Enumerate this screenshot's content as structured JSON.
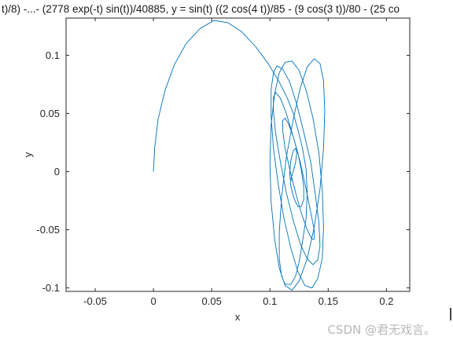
{
  "chart_data": {
    "type": "line",
    "title": "t)/8) -...- (2778 exp(-t) sin(t))/40885, y = sin(t) ((2 cos(4 t))/85 - (9 cos(3 t))/80 - (25 co",
    "xlabel": "x",
    "ylabel": "y",
    "xlim": [
      -0.075,
      0.22
    ],
    "ylim": [
      -0.103,
      0.132
    ],
    "xticks": [
      -0.05,
      0,
      0.05,
      0.1,
      0.15,
      0.2
    ],
    "xtick_labels": [
      "-0.05",
      "0",
      "0.05",
      "0.1",
      "0.15",
      "0.2"
    ],
    "yticks": [
      -0.1,
      -0.05,
      0,
      0.05,
      0.1
    ],
    "ytick_labels": [
      "-0.1",
      "-0.05",
      "0",
      "0.05",
      "0.1"
    ],
    "grid": false,
    "series": [
      {
        "color": "#0072bd",
        "x": [
          0.0,
          0.001,
          0.004,
          0.01,
          0.018,
          0.028,
          0.04,
          0.052,
          0.064,
          0.076,
          0.088,
          0.099,
          0.108,
          0.115,
          0.12,
          0.124,
          0.128,
          0.131,
          0.132,
          0.131,
          0.128,
          0.125,
          0.122,
          0.118,
          0.113,
          0.11,
          0.108,
          0.108,
          0.11,
          0.114,
          0.12,
          0.126,
          0.132,
          0.138,
          0.143,
          0.146,
          0.147,
          0.146,
          0.143,
          0.138,
          0.132,
          0.125,
          0.119,
          0.113,
          0.108,
          0.104,
          0.101,
          0.1,
          0.101,
          0.104,
          0.108,
          0.113,
          0.119,
          0.125,
          0.131,
          0.137,
          0.142,
          0.145,
          0.146,
          0.145,
          0.141,
          0.136,
          0.13,
          0.124,
          0.118,
          0.112,
          0.107,
          0.103,
          0.101,
          0.101,
          0.103,
          0.106,
          0.111,
          0.117,
          0.123,
          0.129,
          0.135,
          0.139,
          0.142,
          0.143,
          0.141,
          0.137,
          0.132,
          0.126,
          0.12,
          0.114,
          0.109,
          0.105,
          0.103,
          0.103,
          0.105,
          0.109,
          0.114,
          0.12,
          0.126,
          0.131,
          0.135,
          0.138,
          0.138,
          0.136,
          0.132,
          0.127,
          0.122,
          0.117,
          0.113,
          0.111,
          0.111,
          0.113,
          0.116,
          0.12,
          0.124,
          0.127,
          0.129,
          0.129,
          0.127,
          0.124,
          0.121,
          0.118,
          0.117,
          0.118,
          0.12,
          0.122,
          0.123,
          0.122,
          0.12,
          0.118,
          0.119
        ],
        "y": [
          0.0,
          0.02,
          0.045,
          0.07,
          0.092,
          0.11,
          0.123,
          0.13,
          0.128,
          0.12,
          0.107,
          0.092,
          0.077,
          0.063,
          0.05,
          0.036,
          0.02,
          0.002,
          -0.018,
          -0.04,
          -0.06,
          -0.078,
          -0.09,
          -0.097,
          -0.097,
          -0.09,
          -0.075,
          -0.052,
          -0.022,
          0.012,
          0.045,
          0.072,
          0.09,
          0.097,
          0.093,
          0.078,
          0.052,
          0.02,
          -0.015,
          -0.048,
          -0.075,
          -0.094,
          -0.102,
          -0.098,
          -0.083,
          -0.058,
          -0.026,
          0.008,
          0.04,
          0.067,
          0.085,
          0.094,
          0.095,
          0.087,
          0.07,
          0.046,
          0.016,
          -0.017,
          -0.048,
          -0.074,
          -0.092,
          -0.1,
          -0.098,
          -0.086,
          -0.066,
          -0.04,
          -0.01,
          0.02,
          0.048,
          0.07,
          0.085,
          0.091,
          0.088,
          0.077,
          0.058,
          0.034,
          0.008,
          -0.02,
          -0.044,
          -0.064,
          -0.076,
          -0.08,
          -0.075,
          -0.062,
          -0.042,
          -0.018,
          0.008,
          0.032,
          0.052,
          0.064,
          0.068,
          0.063,
          0.05,
          0.03,
          0.008,
          -0.015,
          -0.035,
          -0.05,
          -0.058,
          -0.058,
          -0.05,
          -0.036,
          -0.018,
          0.002,
          0.02,
          0.035,
          0.044,
          0.046,
          0.041,
          0.03,
          0.016,
          0.001,
          -0.013,
          -0.024,
          -0.03,
          -0.03,
          -0.024,
          -0.013,
          -0.001,
          0.01,
          0.018,
          0.02,
          0.016,
          0.008,
          0.0,
          -0.006,
          -0.008
        ]
      }
    ]
  },
  "watermark": "CSDN @君无戏言。"
}
